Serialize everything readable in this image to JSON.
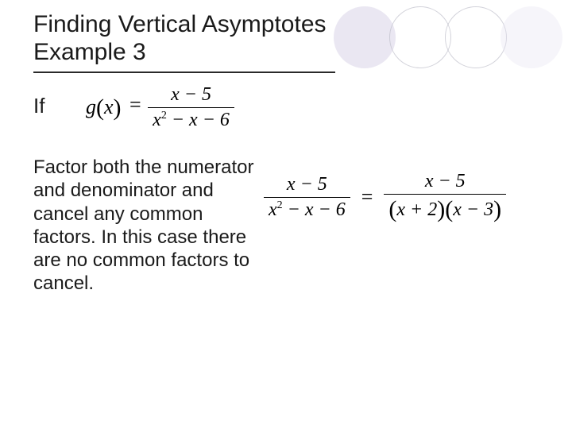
{
  "heading": {
    "line1": "Finding Vertical Asymptotes",
    "line2": "Example 3"
  },
  "intro_label": "If",
  "equation_definition": {
    "lhs_var": "g",
    "lhs_arg": "x",
    "numerator": "x − 5",
    "denominator_raw": "x² − x − 6"
  },
  "description": "Factor both the numerator and denominator and cancel any common factors. In this case there are no common factors to cancel.",
  "equation_factor": {
    "left": {
      "numerator": "x − 5",
      "denominator": "x² − x − 6"
    },
    "right": {
      "numerator": "x − 5",
      "den_factor1": "x + 2",
      "den_factor2": "x − 3"
    }
  },
  "colors": {
    "background": "#ffffff",
    "text": "#1a1a1a",
    "circle_fill": "#d9d4e7",
    "circle_stroke": "#bfbfca",
    "underline": "#2a2a2a"
  }
}
